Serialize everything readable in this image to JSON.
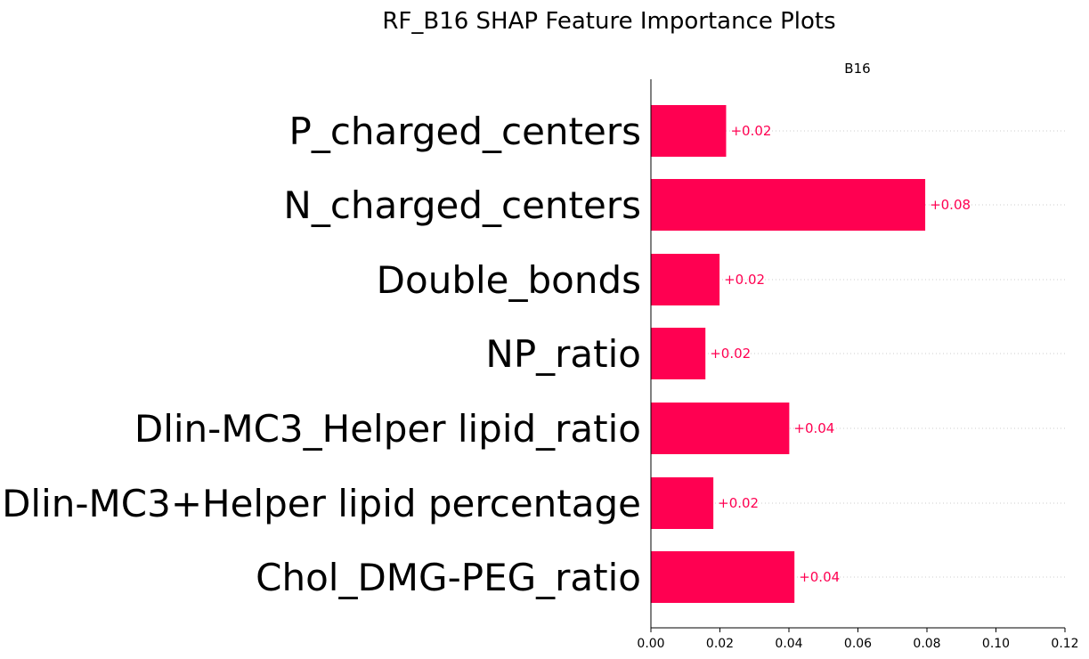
{
  "chart_data": {
    "type": "bar",
    "orientation": "horizontal",
    "title": "RF_B16 SHAP Feature Importance Plots",
    "subplot_title": "B16",
    "categories": [
      "P_charged_centers",
      "N_charged_centers",
      "Double_bonds",
      "NP_ratio",
      "Dlin-MC3_Helper lipid_ratio",
      "Dlin-MC3+Helper lipid percentage",
      "Chol_DMG-PEG_ratio"
    ],
    "values": [
      0.0218,
      0.0795,
      0.0199,
      0.0158,
      0.0401,
      0.0181,
      0.0416
    ],
    "data_labels": [
      "+0.02",
      "+0.08",
      "+0.02",
      "+0.02",
      "+0.04",
      "+0.02",
      "+0.04"
    ],
    "xlim": [
      0,
      0.12
    ],
    "xticks": [
      "0.00",
      "0.02",
      "0.04",
      "0.06",
      "0.08",
      "0.10",
      "0.12"
    ],
    "bar_color": "#ff0051",
    "grid": "dotted horizontal guides per row",
    "legend": "none"
  }
}
